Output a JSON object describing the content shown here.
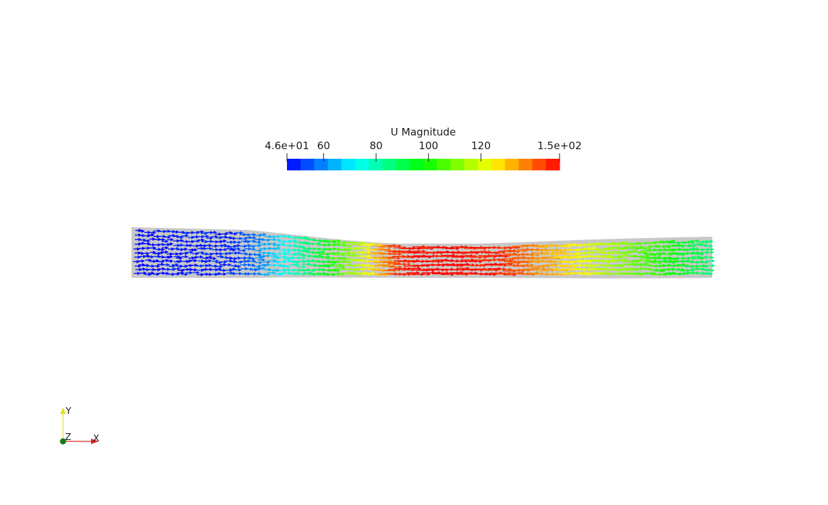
{
  "colorbar": {
    "title": "U Magnitude",
    "range": [
      46,
      150
    ],
    "min_label": "4.6e+01",
    "max_label": "1.5e+02",
    "ticks": [
      {
        "value": 60,
        "label": "60"
      },
      {
        "value": 80,
        "label": "80"
      },
      {
        "value": 100,
        "label": "100"
      },
      {
        "value": 120,
        "label": "120"
      }
    ],
    "bands": 20,
    "colormap": "jet",
    "colors": [
      "#0000ff",
      "#00ffff",
      "#00ff00",
      "#ffff00",
      "#ff0000"
    ]
  },
  "axes_triad": {
    "x_label": "X",
    "y_label": "Y",
    "z_label": "Z",
    "x_color": "#e02020",
    "y_color": "#e0e020",
    "z_color": "#1a7a1a"
  },
  "flow_field": {
    "domain_color": "#c8c8c8",
    "inlet_magnitude": 46,
    "throat_magnitude": 150,
    "outlet_magnitude": 85
  }
}
